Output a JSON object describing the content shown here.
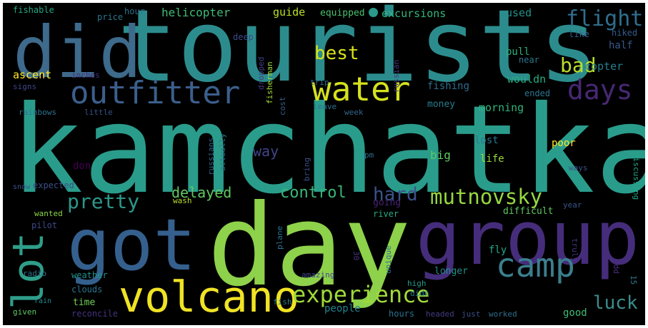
{
  "words": [
    {
      "id": "kamchatka",
      "text": "kamchatka",
      "color": "#2a9c8b"
    },
    {
      "id": "tourists",
      "text": "tourists",
      "color": "#2c8c8d"
    },
    {
      "id": "day",
      "text": "day",
      "color": "#8ed14b"
    },
    {
      "id": "did",
      "text": "did",
      "color": "#3e6a8b"
    },
    {
      "id": "group",
      "text": "group",
      "color": "#462d7b"
    },
    {
      "id": "got",
      "text": "got",
      "color": "#35608d"
    },
    {
      "id": "lot",
      "text": "lot",
      "color": "#2e9e8a"
    },
    {
      "id": "volcano",
      "text": "volcano",
      "color": "#f0e324"
    },
    {
      "id": "outfitter",
      "text": "outfitter",
      "color": "#3b5f8c"
    },
    {
      "id": "water",
      "text": "water",
      "color": "#d5e11e"
    },
    {
      "id": "camp",
      "text": "camp",
      "color": "#3b7f8e"
    },
    {
      "id": "experience",
      "text": "experience",
      "color": "#9fd93a"
    },
    {
      "id": "days",
      "text": "days",
      "color": "#472873"
    },
    {
      "id": "flight",
      "text": "flight",
      "color": "#2f6e8d"
    },
    {
      "id": "bad",
      "text": "bad",
      "color": "#bade28"
    },
    {
      "id": "best",
      "text": "best",
      "color": "#d8e219"
    },
    {
      "id": "mutnovsky",
      "text": "mutnovsky",
      "color": "#95d840"
    },
    {
      "id": "hard",
      "text": "hard",
      "color": "#3b528b"
    },
    {
      "id": "pretty",
      "text": "pretty",
      "color": "#2c978a"
    },
    {
      "id": "control",
      "text": "control",
      "color": "#39b676"
    },
    {
      "id": "luck",
      "text": "luck",
      "color": "#3a8d8c"
    },
    {
      "id": "delayed",
      "text": "delayed",
      "color": "#60c860"
    },
    {
      "id": "way",
      "text": "way",
      "color": "#414487"
    },
    {
      "id": "helicopter",
      "text": "helicopter",
      "color": "#3fbc73"
    },
    {
      "id": "excursions",
      "text": "excursions",
      "color": "#32b67a"
    },
    {
      "id": "used",
      "text": "used",
      "color": "#21918c"
    },
    {
      "id": "guide",
      "text": "guide",
      "color": "#bddf26"
    },
    {
      "id": "equipped",
      "text": "equipped",
      "color": "#48c16e"
    },
    {
      "id": "hour",
      "text": "hour",
      "color": "#2c728e"
    },
    {
      "id": "price",
      "text": "price",
      "color": "#2a778e"
    },
    {
      "id": "fishable",
      "text": "fishable",
      "color": "#22a785"
    },
    {
      "id": "deep",
      "text": "deep",
      "color": "#3e4a89"
    },
    {
      "id": "fisherman",
      "text": "fisherman",
      "color": "#a0da39"
    },
    {
      "id": "dropped",
      "text": "dropped",
      "color": "#433e85"
    },
    {
      "id": "russian",
      "text": "russian",
      "color": "#453781"
    },
    {
      "id": "trip",
      "text": "trip",
      "color": "#31688e"
    },
    {
      "id": "near",
      "text": "near",
      "color": "#2a788e"
    },
    {
      "id": "like",
      "text": "like",
      "color": "#355f8d"
    },
    {
      "id": "hiked",
      "text": "hiked",
      "color": "#365c8d"
    },
    {
      "id": "half",
      "text": "half",
      "color": "#38588c"
    },
    {
      "id": "copter",
      "text": "copter",
      "color": "#277f8e"
    },
    {
      "id": "pull",
      "text": "pull",
      "color": "#2ab07f"
    },
    {
      "id": "ascent",
      "text": "ascent",
      "color": "#fde725"
    },
    {
      "id": "inches",
      "text": "inches",
      "color": "#46327e"
    },
    {
      "id": "signs",
      "text": "signs",
      "color": "#3f4788"
    },
    {
      "id": "wouldn",
      "text": "wouldn",
      "color": "#27ad81"
    },
    {
      "id": "fishing",
      "text": "fishing",
      "color": "#2f6c8e"
    },
    {
      "id": "ended",
      "text": "ended",
      "color": "#2b758e"
    },
    {
      "id": "rainbows",
      "text": "rainbows",
      "color": "#2c738e"
    },
    {
      "id": "little",
      "text": "little",
      "color": "#3a538b"
    },
    {
      "id": "cost",
      "text": "cost",
      "color": "#365d8d"
    },
    {
      "id": "leave",
      "text": "leave",
      "color": "#2d708e"
    },
    {
      "id": "week",
      "text": "week",
      "color": "#31668e"
    },
    {
      "id": "money",
      "text": "money",
      "color": "#287c8e"
    },
    {
      "id": "morning",
      "text": "morning",
      "color": "#2eb37c"
    },
    {
      "id": "snow",
      "text": "snow",
      "color": "#3a548c"
    },
    {
      "id": "expected",
      "text": "expected",
      "color": "#3b518b"
    },
    {
      "id": "don",
      "text": "don",
      "color": "#440154"
    },
    {
      "id": "russians",
      "text": "russians",
      "color": "#32658e"
    },
    {
      "id": "actually",
      "text": "actually",
      "color": "#2a768e"
    },
    {
      "id": "bring",
      "text": "bring",
      "color": "#3e4c8a"
    },
    {
      "id": "pm",
      "text": "pm",
      "color": "#2e6e8e"
    },
    {
      "id": "big",
      "text": "big",
      "color": "#5ec962"
    },
    {
      "id": "lost",
      "text": "lost",
      "color": "#29798e"
    },
    {
      "id": "life",
      "text": "life",
      "color": "#9bd93c"
    },
    {
      "id": "poor",
      "text": "poor",
      "color": "#fde725"
    },
    {
      "id": "discussing",
      "text": "discussing",
      "color": "#21a685"
    },
    {
      "id": "ways",
      "text": "ways",
      "color": "#3b528b"
    },
    {
      "id": "going",
      "text": "going",
      "color": "#482374"
    },
    {
      "id": "wash",
      "text": "wash",
      "color": "#b8de29"
    },
    {
      "id": "wanted",
      "text": "wanted",
      "color": "#8bd646"
    },
    {
      "id": "pilot",
      "text": "pilot",
      "color": "#3e4989"
    },
    {
      "id": "river",
      "text": "river",
      "color": "#25ab82"
    },
    {
      "id": "difficult",
      "text": "difficult",
      "color": "#5ec962"
    },
    {
      "id": "year",
      "text": "year",
      "color": "#3a548c"
    },
    {
      "id": "truly",
      "text": "truly",
      "color": "#443983"
    },
    {
      "id": "plane",
      "text": "plane",
      "color": "#2c738e"
    },
    {
      "id": "unique",
      "text": "unique",
      "color": "#2d708e"
    },
    {
      "id": "30",
      "text": "30",
      "color": "#453882"
    },
    {
      "id": "fly",
      "text": "fly",
      "color": "#22a884"
    },
    {
      "id": "radio",
      "text": "radio",
      "color": "#2d718e"
    },
    {
      "id": "weather",
      "text": "weather",
      "color": "#20928c"
    },
    {
      "id": "amazing",
      "text": "amazing",
      "color": "#3e4a89"
    },
    {
      "id": "longer",
      "text": "longer",
      "color": "#21918c"
    },
    {
      "id": "odd",
      "text": "odd",
      "color": "#472d7b"
    },
    {
      "id": "15",
      "text": "15",
      "color": "#2a788e"
    },
    {
      "id": "clouds",
      "text": "clouds",
      "color": "#2b748e"
    },
    {
      "id": "high",
      "text": "high",
      "color": "#1f9a8a"
    },
    {
      "id": "didn",
      "text": "didn",
      "color": "#27808e"
    },
    {
      "id": "rain",
      "text": "rain",
      "color": "#23898e"
    },
    {
      "id": "fish",
      "text": "fish",
      "color": "#277f8e"
    },
    {
      "id": "time",
      "text": "time",
      "color": "#70cf57"
    },
    {
      "id": "people",
      "text": "people",
      "color": "#26828e"
    },
    {
      "id": "given",
      "text": "given",
      "color": "#5ec962"
    },
    {
      "id": "reconcile",
      "text": "reconcile",
      "color": "#46337f"
    },
    {
      "id": "hours",
      "text": "hours",
      "color": "#2c728e"
    },
    {
      "id": "headed",
      "text": "headed",
      "color": "#433d84"
    },
    {
      "id": "just",
      "text": "just",
      "color": "#3c4f8a"
    },
    {
      "id": "worked",
      "text": "worked",
      "color": "#2e6f8e"
    },
    {
      "id": "good",
      "text": "good",
      "color": "#3dbc74"
    }
  ]
}
